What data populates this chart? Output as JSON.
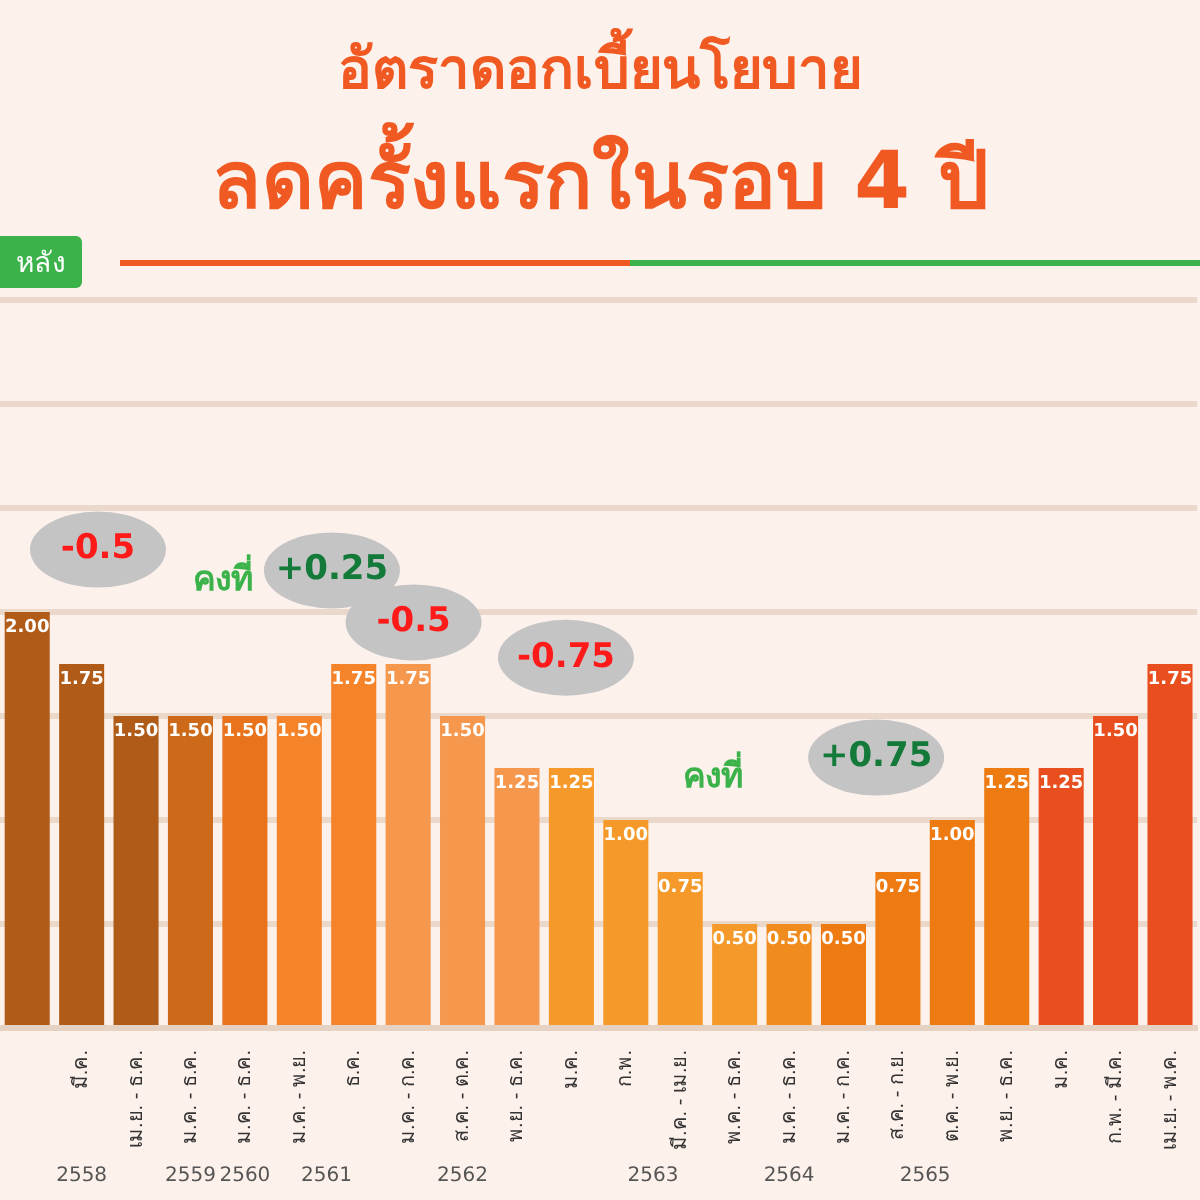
{
  "chart_data": {
    "type": "bar",
    "title": "อัตราดอกเบี้ยนโยบาย",
    "subtitle": "ลดครั้งแรกในรอบ 4 ปี",
    "categories": [
      null,
      "มี.ค.",
      "เม.ย. - ธ.ค.",
      "ม.ค. - ธ.ค.",
      "ม.ค. - ธ.ค.",
      "ม.ค. - พ.ย.",
      "ธ.ค.",
      "ม.ค. - ก.ค.",
      "ส.ค. - ต.ค.",
      "พ.ย. - ธ.ค.",
      "ม.ค.",
      "ก.พ.",
      "มี.ค. - เม.ย.",
      "พ.ค. - ธ.ค.",
      "ม.ค. - ธ.ค.",
      "ม.ค. - ก.ค.",
      "ส.ค. - ก.ย.",
      "ต.ค. - พ.ย.",
      "พ.ย. - ธ.ค.",
      "ม.ค.",
      "ก.พ. - มี.ค.",
      "เม.ย. - พ.ค."
    ],
    "values": [
      2.0,
      1.75,
      1.5,
      1.5,
      1.5,
      1.5,
      1.75,
      1.75,
      1.5,
      1.25,
      1.25,
      1.0,
      0.75,
      0.5,
      0.5,
      0.5,
      0.75,
      1.0,
      1.25,
      1.25,
      1.5,
      1.75
    ],
    "colors": [
      "#b05c18",
      "#b05c18",
      "#b05c18",
      "#cc6a1a",
      "#e8731c",
      "#f5832a",
      "#f5832a",
      "#f5974c",
      "#f5974c",
      "#f5974c",
      "#f59a2a",
      "#f59a2a",
      "#f59a2a",
      "#f59a2a",
      "#f08c1e",
      "#ee7a12",
      "#ee7a12",
      "#ee7a12",
      "#ee7a12",
      "#e84e1e",
      "#e84e1e",
      "#e84e1e"
    ],
    "value_labels": [
      "2.00",
      "1.75",
      "1.50",
      "1.50",
      "1.50",
      "1.50",
      "1.75",
      "1.75",
      "1.50",
      "1.25",
      "1.25",
      "1.00",
      "0.75",
      "0.50",
      "0.50",
      "0.50",
      "0.75",
      "1.00",
      "1.25",
      "1.25",
      "1.50",
      "1.75"
    ],
    "ylim": [
      0,
      3.5
    ],
    "yticks": [
      {
        "value": 0,
        "label": null
      },
      {
        "value": 0.5,
        "label": null
      },
      {
        "value": 1,
        "label": null
      },
      {
        "value": 1.5,
        "label": null
      },
      {
        "value": 2,
        "label": null
      },
      {
        "value": 2.5,
        "label": null
      },
      {
        "value": 3,
        "label": null
      },
      {
        "value": 3.5,
        "label": null
      }
    ],
    "tick_labels": "x",
    "grid": "y",
    "legend": false,
    "annotations": [
      "หลัง",
      "-0.5",
      "คงที่",
      "+0.25",
      "-0.5",
      "-0.75",
      "คงที่",
      "+0.75",
      "2558",
      "2559",
      "2560",
      "2561",
      "2562",
      "2563",
      "2564",
      "2565"
    ]
  }
}
